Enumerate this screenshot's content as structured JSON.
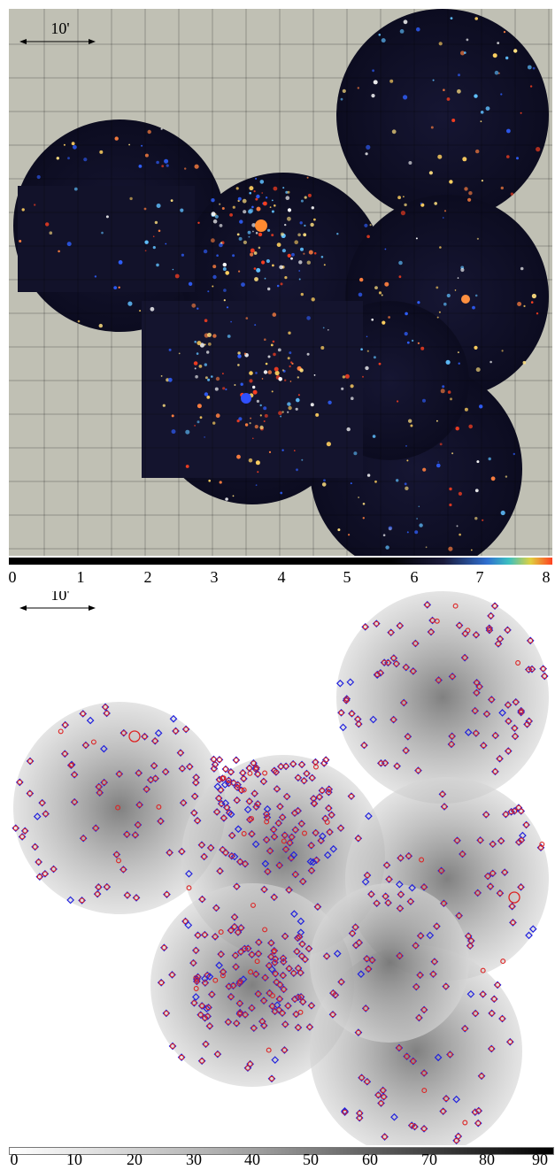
{
  "top_panel": {
    "scale_label": "10'",
    "colorbar_ticks": [
      "0",
      "1",
      "2",
      "3",
      "4",
      "5",
      "6",
      "7",
      "8"
    ],
    "colorbar_colors": [
      "#000000",
      "#2f6fd0",
      "#3cc0c0",
      "#e0d040",
      "#ff4020"
    ]
  },
  "bottom_panel": {
    "scale_label": "10'",
    "colorbar_ticks": [
      "0",
      "10",
      "20",
      "30",
      "40",
      "50",
      "60",
      "70",
      "80",
      "90"
    ],
    "marker_colors": {
      "diamond": "#2222dd",
      "circle": "#dd2222"
    }
  }
}
